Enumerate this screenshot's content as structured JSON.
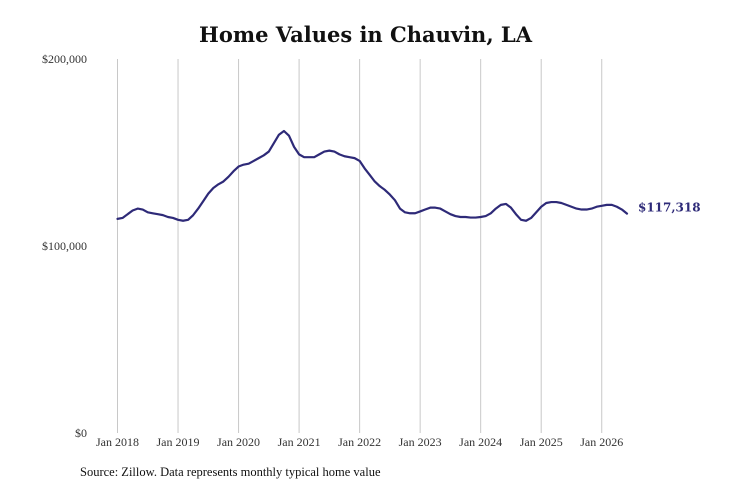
{
  "chart_data": {
    "type": "line",
    "title": "Home Values in Chauvin, LA",
    "xlabel": "",
    "ylabel": "",
    "xlim": [
      2018.0,
      2026.5
    ],
    "ylim": [
      0,
      200000
    ],
    "yticks": [
      {
        "value": 0,
        "label": "$0"
      },
      {
        "value": 100000,
        "label": "$100,000"
      },
      {
        "value": 200000,
        "label": "$200,000"
      }
    ],
    "xticks": [
      {
        "value": 2018,
        "label": "Jan 2018"
      },
      {
        "value": 2019,
        "label": "Jan 2019"
      },
      {
        "value": 2020,
        "label": "Jan 2020"
      },
      {
        "value": 2021,
        "label": "Jan 2021"
      },
      {
        "value": 2022,
        "label": "Jan 2022"
      },
      {
        "value": 2023,
        "label": "Jan 2023"
      },
      {
        "value": 2024,
        "label": "Jan 2024"
      },
      {
        "value": 2025,
        "label": "Jan 2025"
      },
      {
        "value": 2026,
        "label": "Jan 2026"
      }
    ],
    "grid": "vertical",
    "line_color": "#2e2a78",
    "end_label": "$117,318",
    "series": [
      {
        "name": "",
        "points": [
          [
            2018.0,
            114500
          ],
          [
            2018.083,
            115000
          ],
          [
            2018.167,
            117000
          ],
          [
            2018.25,
            119000
          ],
          [
            2018.333,
            120000
          ],
          [
            2018.417,
            119500
          ],
          [
            2018.5,
            118000
          ],
          [
            2018.583,
            117500
          ],
          [
            2018.667,
            117000
          ],
          [
            2018.75,
            116500
          ],
          [
            2018.833,
            115500
          ],
          [
            2018.917,
            115000
          ],
          [
            2019.0,
            114000
          ],
          [
            2019.083,
            113500
          ],
          [
            2019.167,
            114000
          ],
          [
            2019.25,
            116500
          ],
          [
            2019.333,
            120000
          ],
          [
            2019.417,
            124000
          ],
          [
            2019.5,
            128000
          ],
          [
            2019.583,
            131000
          ],
          [
            2019.667,
            133000
          ],
          [
            2019.75,
            134500
          ],
          [
            2019.833,
            137000
          ],
          [
            2019.917,
            140000
          ],
          [
            2020.0,
            142500
          ],
          [
            2020.083,
            143500
          ],
          [
            2020.167,
            144000
          ],
          [
            2020.25,
            145500
          ],
          [
            2020.333,
            147000
          ],
          [
            2020.417,
            148500
          ],
          [
            2020.5,
            150500
          ],
          [
            2020.583,
            155000
          ],
          [
            2020.667,
            159500
          ],
          [
            2020.75,
            161500
          ],
          [
            2020.833,
            159000
          ],
          [
            2020.917,
            153000
          ],
          [
            2021.0,
            149000
          ],
          [
            2021.083,
            147500
          ],
          [
            2021.167,
            147500
          ],
          [
            2021.25,
            147500
          ],
          [
            2021.333,
            149000
          ],
          [
            2021.417,
            150500
          ],
          [
            2021.5,
            151000
          ],
          [
            2021.583,
            150500
          ],
          [
            2021.667,
            149000
          ],
          [
            2021.75,
            148000
          ],
          [
            2021.833,
            147500
          ],
          [
            2021.917,
            147000
          ],
          [
            2022.0,
            145500
          ],
          [
            2022.083,
            141500
          ],
          [
            2022.167,
            138000
          ],
          [
            2022.25,
            134500
          ],
          [
            2022.333,
            132000
          ],
          [
            2022.417,
            130000
          ],
          [
            2022.5,
            127500
          ],
          [
            2022.583,
            124500
          ],
          [
            2022.667,
            120000
          ],
          [
            2022.75,
            118000
          ],
          [
            2022.833,
            117500
          ],
          [
            2022.917,
            117500
          ],
          [
            2023.0,
            118500
          ],
          [
            2023.083,
            119500
          ],
          [
            2023.167,
            120500
          ],
          [
            2023.25,
            120500
          ],
          [
            2023.333,
            120000
          ],
          [
            2023.417,
            118500
          ],
          [
            2023.5,
            117000
          ],
          [
            2023.583,
            116000
          ],
          [
            2023.667,
            115500
          ],
          [
            2023.75,
            115500
          ],
          [
            2023.833,
            115200
          ],
          [
            2023.917,
            115200
          ],
          [
            2024.0,
            115500
          ],
          [
            2024.083,
            116000
          ],
          [
            2024.167,
            117500
          ],
          [
            2024.25,
            120000
          ],
          [
            2024.333,
            122000
          ],
          [
            2024.417,
            122500
          ],
          [
            2024.5,
            120500
          ],
          [
            2024.583,
            117000
          ],
          [
            2024.667,
            114000
          ],
          [
            2024.75,
            113500
          ],
          [
            2024.833,
            115000
          ],
          [
            2024.917,
            118000
          ],
          [
            2025.0,
            121000
          ],
          [
            2025.083,
            123000
          ],
          [
            2025.167,
            123500
          ],
          [
            2025.25,
            123500
          ],
          [
            2025.333,
            123000
          ],
          [
            2025.417,
            122000
          ],
          [
            2025.5,
            121000
          ],
          [
            2025.583,
            120000
          ],
          [
            2025.667,
            119500
          ],
          [
            2025.75,
            119500
          ],
          [
            2025.833,
            120000
          ],
          [
            2025.917,
            121000
          ],
          [
            2026.0,
            121500
          ],
          [
            2026.083,
            122000
          ],
          [
            2026.167,
            122000
          ],
          [
            2026.25,
            121000
          ],
          [
            2026.333,
            119500
          ],
          [
            2026.417,
            117318
          ]
        ]
      }
    ]
  },
  "footer": {
    "source": "Source: Zillow. Data represents monthly typical home value"
  }
}
